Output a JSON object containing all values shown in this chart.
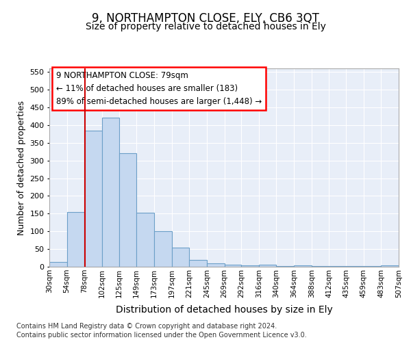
{
  "title": "9, NORTHAMPTON CLOSE, ELY, CB6 3QT",
  "subtitle": "Size of property relative to detached houses in Ely",
  "xlabel": "Distribution of detached houses by size in Ely",
  "ylabel": "Number of detached properties",
  "footnote1": "Contains HM Land Registry data © Crown copyright and database right 2024.",
  "footnote2": "Contains public sector information licensed under the Open Government Licence v3.0.",
  "annotation_line1": "9 NORTHAMPTON CLOSE: 79sqm",
  "annotation_line2": "← 11% of detached houses are smaller (183)",
  "annotation_line3": "89% of semi-detached houses are larger (1,448) →",
  "bar_color": "#c5d8f0",
  "bar_edge_color": "#6b9fc8",
  "redline_color": "#cc0000",
  "redline_x": 79,
  "bin_edges": [
    30,
    54,
    78,
    102,
    125,
    149,
    173,
    197,
    221,
    245,
    269,
    292,
    316,
    340,
    364,
    388,
    412,
    435,
    459,
    483,
    507
  ],
  "bar_heights": [
    13,
    155,
    384,
    421,
    321,
    153,
    100,
    55,
    19,
    10,
    6,
    3,
    5,
    1,
    3,
    1,
    2,
    1,
    1,
    3
  ],
  "ylim": [
    0,
    560
  ],
  "yticks": [
    0,
    50,
    100,
    150,
    200,
    250,
    300,
    350,
    400,
    450,
    500,
    550
  ],
  "background_color": "#ffffff",
  "plot_bg_color": "#e8eef8",
  "grid_color": "#ffffff",
  "title_fontsize": 12,
  "subtitle_fontsize": 10,
  "footnote_fontsize": 7,
  "ylabel_fontsize": 9,
  "xlabel_fontsize": 10
}
